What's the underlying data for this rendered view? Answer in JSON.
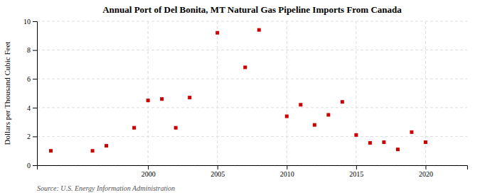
{
  "chart_data": {
    "type": "scatter",
    "title": "Annual Port of Del Bonita, MT Natural Gas Pipeline Imports From Canada",
    "ylabel": "Dollars per Thousand Cubic Feet",
    "source": "Source: U.S. Energy Information Administration",
    "x": [
      1993,
      1996,
      1997,
      1999,
      2000,
      2001,
      2002,
      2003,
      2005,
      2007,
      2008,
      2010,
      2011,
      2012,
      2013,
      2014,
      2015,
      2016,
      2017,
      2018,
      2019,
      2020
    ],
    "values": [
      1.0,
      1.0,
      1.35,
      2.6,
      4.5,
      4.6,
      2.6,
      4.7,
      9.2,
      6.8,
      9.4,
      3.4,
      4.2,
      2.8,
      3.5,
      4.4,
      2.1,
      1.55,
      1.6,
      1.1,
      2.3,
      1.6
    ],
    "color": "#cc0000",
    "marker": "square",
    "xlim": [
      1992,
      2023
    ],
    "ylim": [
      0,
      10
    ],
    "xticks": [
      2000,
      2005,
      2010,
      2015,
      2020
    ],
    "yticks": [
      0,
      2,
      4,
      6,
      8,
      10
    ],
    "grid": true
  }
}
